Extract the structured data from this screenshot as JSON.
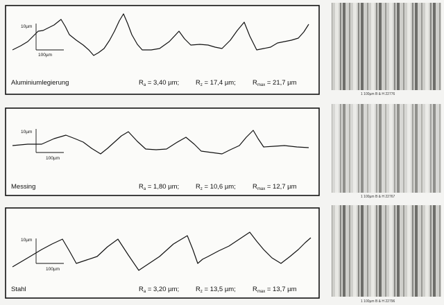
{
  "panels": [
    {
      "material": "Aluminiumlegierung",
      "scale_y": "10µm",
      "scale_x": "100µm",
      "params": [
        {
          "symbol": "R",
          "sub": "a",
          "value": " = 3,40 µm;"
        },
        {
          "symbol": "R",
          "sub": "z",
          "value": " = 17,4 µm;"
        },
        {
          "symbol": "R",
          "sub": "max",
          "value": " = 21,7 µm"
        }
      ],
      "image_caption": "1   100µm   B & H   22776"
    },
    {
      "material": "Messing",
      "scale_y": "10µm",
      "scale_x": "100µm",
      "params": [
        {
          "symbol": "R",
          "sub": "a",
          "value": " = 1,80 µm;"
        },
        {
          "symbol": "R",
          "sub": "z",
          "value": " = 10,6 µm;"
        },
        {
          "symbol": "R",
          "sub": "max",
          "value": " = 12,7 µm"
        }
      ],
      "image_caption": "1   100µm   B & H   22767"
    },
    {
      "material": "Stahl",
      "scale_y": "10µm",
      "scale_x": "100µm",
      "params": [
        {
          "symbol": "R",
          "sub": "a",
          "value": " = 3,20 µm;"
        },
        {
          "symbol": "R",
          "sub": "z",
          "value": " = 13,5 µm;"
        },
        {
          "symbol": "R",
          "sub": "max",
          "value": " = 13,7 µm"
        }
      ],
      "image_caption": "1   100µm   B & H   22796"
    }
  ]
}
